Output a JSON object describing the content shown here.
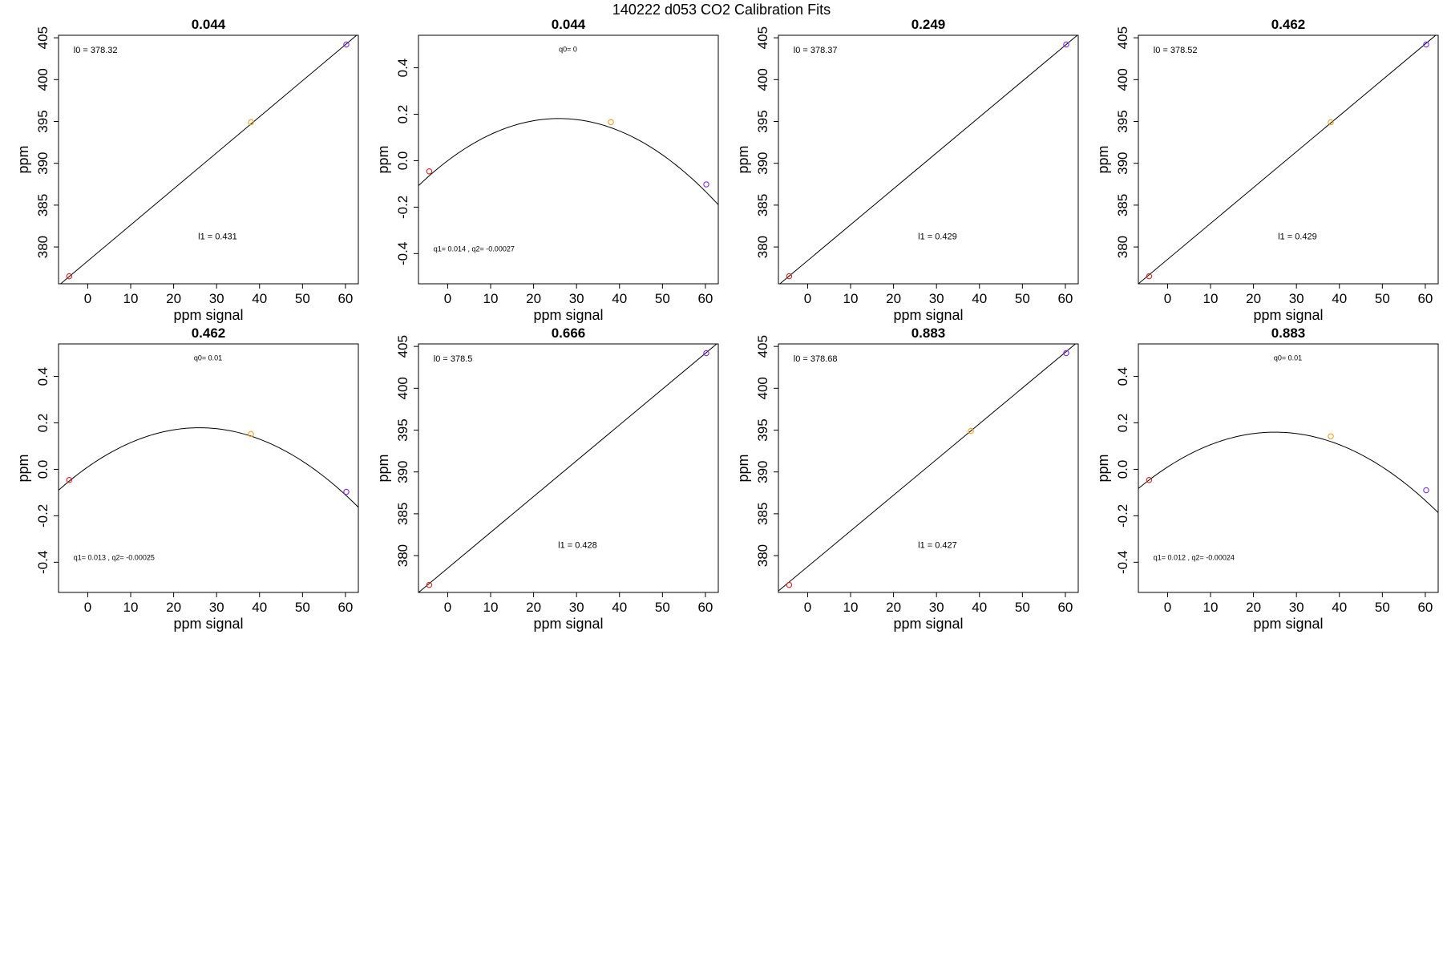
{
  "figure": {
    "suptitle": "140222   d053   CO2 Calibration Fits"
  },
  "chart_data": [
    {
      "type": "scatter",
      "fit": "linear",
      "title": "0.044",
      "xlabel": "ppm signal",
      "ylabel": "ppm",
      "xlim": [
        -6.8,
        63
      ],
      "ylim": [
        375.6,
        405.3
      ],
      "xticks": [
        0,
        10,
        20,
        30,
        40,
        50,
        60
      ],
      "yticks": [
        380,
        385,
        390,
        395,
        400,
        405
      ],
      "points": [
        {
          "x": -4.3,
          "y": 376.5,
          "color": "#dd2020"
        },
        {
          "x": 38.0,
          "y": 394.9,
          "color": "#f0a020"
        },
        {
          "x": 60.2,
          "y": 404.2,
          "color": "#7a2cf0"
        }
      ],
      "fit_params": {
        "l0": 378.32,
        "l1": 0.431
      },
      "annotations": [
        {
          "text": "l0 =  378.32",
          "ax": -3.3,
          "ay": 403.2,
          "anchor": "start",
          "size": "ann"
        },
        {
          "text": "l1 =  0.431",
          "ax": 25.7,
          "ay": 380.9,
          "anchor": "start",
          "size": "ann"
        }
      ]
    },
    {
      "type": "scatter",
      "fit": "quadratic",
      "title": "0.044",
      "xlabel": "ppm signal",
      "ylabel": "ppm",
      "xlim": [
        -6.8,
        63
      ],
      "ylim": [
        -0.53,
        0.54
      ],
      "xticks": [
        0,
        10,
        20,
        30,
        40,
        50,
        60
      ],
      "yticks": [
        -0.4,
        -0.2,
        0.0,
        0.2,
        0.4
      ],
      "yticklabels": [
        "-0.4",
        "-0.2",
        "0.0",
        "0.2",
        "0.4"
      ],
      "points": [
        {
          "x": -4.3,
          "y": -0.046,
          "color": "#dd2020"
        },
        {
          "x": 38.0,
          "y": 0.166,
          "color": "#f0a020"
        },
        {
          "x": 60.2,
          "y": -0.102,
          "color": "#7a2cf0"
        }
      ],
      "fit_params": {
        "q0": 0,
        "q1": 0.014,
        "q2": -0.00027
      },
      "annotations": [
        {
          "text": "q0= 0",
          "ax": 28.0,
          "ay": 0.47,
          "anchor": "middle",
          "size": "ann-sm"
        },
        {
          "text": "q1= 0.014 , q2= -0.00027",
          "ax": -3.3,
          "ay": -0.39,
          "anchor": "start",
          "size": "ann-sm"
        }
      ]
    },
    {
      "type": "scatter",
      "fit": "linear",
      "title": "0.249",
      "xlabel": "ppm signal",
      "ylabel": "ppm",
      "xlim": [
        -6.8,
        63
      ],
      "ylim": [
        375.6,
        405.3
      ],
      "xticks": [
        0,
        10,
        20,
        30,
        40,
        50,
        60
      ],
      "yticks": [
        380,
        385,
        390,
        395,
        400,
        405
      ],
      "points": [
        {
          "x": -4.3,
          "y": 376.5,
          "color": "#dd2020"
        },
        {
          "x": 60.2,
          "y": 404.2,
          "color": "#7a2cf0"
        }
      ],
      "fit_params": {
        "l0": 378.37,
        "l1": 0.429
      },
      "annotations": [
        {
          "text": "l0 =  378.37",
          "ax": -3.3,
          "ay": 403.2,
          "anchor": "start",
          "size": "ann"
        },
        {
          "text": "l1 =  0.429",
          "ax": 25.7,
          "ay": 380.9,
          "anchor": "start",
          "size": "ann"
        }
      ]
    },
    {
      "type": "scatter",
      "fit": "linear",
      "title": "0.462",
      "xlabel": "ppm signal",
      "ylabel": "ppm",
      "xlim": [
        -6.8,
        63
      ],
      "ylim": [
        375.6,
        405.3
      ],
      "xticks": [
        0,
        10,
        20,
        30,
        40,
        50,
        60
      ],
      "yticks": [
        380,
        385,
        390,
        395,
        400,
        405
      ],
      "points": [
        {
          "x": -4.3,
          "y": 376.5,
          "color": "#dd2020"
        },
        {
          "x": 38.0,
          "y": 394.9,
          "color": "#f0a020"
        },
        {
          "x": 60.2,
          "y": 404.2,
          "color": "#7a2cf0"
        }
      ],
      "fit_params": {
        "l0": 378.52,
        "l1": 0.429
      },
      "annotations": [
        {
          "text": "l0 =  378.52",
          "ax": -3.3,
          "ay": 403.2,
          "anchor": "start",
          "size": "ann"
        },
        {
          "text": "l1 =  0.429",
          "ax": 25.7,
          "ay": 380.9,
          "anchor": "start",
          "size": "ann"
        }
      ]
    },
    {
      "type": "scatter",
      "fit": "quadratic",
      "title": "0.462",
      "xlabel": "ppm signal",
      "ylabel": "ppm",
      "xlim": [
        -6.8,
        63
      ],
      "ylim": [
        -0.53,
        0.54
      ],
      "xticks": [
        0,
        10,
        20,
        30,
        40,
        50,
        60
      ],
      "yticks": [
        -0.4,
        -0.2,
        0.0,
        0.2,
        0.4
      ],
      "yticklabels": [
        "-0.4",
        "-0.2",
        "0.0",
        "0.2",
        "0.4"
      ],
      "points": [
        {
          "x": -4.3,
          "y": -0.046,
          "color": "#dd2020"
        },
        {
          "x": 38.0,
          "y": 0.152,
          "color": "#f0a020"
        },
        {
          "x": 60.2,
          "y": -0.097,
          "color": "#7a2cf0"
        }
      ],
      "fit_params": {
        "q0": 0.01,
        "q1": 0.013,
        "q2": -0.00025
      },
      "annotations": [
        {
          "text": "q0= 0.01",
          "ax": 28.0,
          "ay": 0.47,
          "anchor": "middle",
          "size": "ann-sm"
        },
        {
          "text": "q1= 0.013 , q2= -0.00025",
          "ax": -3.3,
          "ay": -0.39,
          "anchor": "start",
          "size": "ann-sm"
        }
      ]
    },
    {
      "type": "scatter",
      "fit": "linear",
      "title": "0.666",
      "xlabel": "ppm signal",
      "ylabel": "ppm",
      "xlim": [
        -6.8,
        63
      ],
      "ylim": [
        375.6,
        405.3
      ],
      "xticks": [
        0,
        10,
        20,
        30,
        40,
        50,
        60
      ],
      "yticks": [
        380,
        385,
        390,
        395,
        400,
        405
      ],
      "points": [
        {
          "x": -4.3,
          "y": 376.5,
          "color": "#dd2020"
        },
        {
          "x": 60.2,
          "y": 404.2,
          "color": "#7a2cf0"
        }
      ],
      "fit_params": {
        "l0": 378.5,
        "l1": 0.428
      },
      "annotations": [
        {
          "text": "l0 =  378.5",
          "ax": -3.3,
          "ay": 403.2,
          "anchor": "start",
          "size": "ann"
        },
        {
          "text": "l1 =  0.428",
          "ax": 25.7,
          "ay": 380.9,
          "anchor": "start",
          "size": "ann"
        }
      ]
    },
    {
      "type": "scatter",
      "fit": "linear",
      "title": "0.883",
      "xlabel": "ppm signal",
      "ylabel": "ppm",
      "xlim": [
        -6.8,
        63
      ],
      "ylim": [
        375.6,
        405.3
      ],
      "xticks": [
        0,
        10,
        20,
        30,
        40,
        50,
        60
      ],
      "yticks": [
        380,
        385,
        390,
        395,
        400,
        405
      ],
      "points": [
        {
          "x": -4.3,
          "y": 376.5,
          "color": "#dd2020"
        },
        {
          "x": 38.0,
          "y": 394.9,
          "color": "#f0a020"
        },
        {
          "x": 60.2,
          "y": 404.2,
          "color": "#7a2cf0"
        }
      ],
      "fit_params": {
        "l0": 378.68,
        "l1": 0.427
      },
      "annotations": [
        {
          "text": "l0 =  378.68",
          "ax": -3.3,
          "ay": 403.2,
          "anchor": "start",
          "size": "ann"
        },
        {
          "text": "l1 =  0.427",
          "ax": 25.7,
          "ay": 380.9,
          "anchor": "start",
          "size": "ann"
        }
      ]
    },
    {
      "type": "scatter",
      "fit": "quadratic",
      "title": "0.883",
      "xlabel": "ppm signal",
      "ylabel": "ppm",
      "xlim": [
        -6.8,
        63
      ],
      "ylim": [
        -0.53,
        0.54
      ],
      "xticks": [
        0,
        10,
        20,
        30,
        40,
        50,
        60
      ],
      "yticks": [
        -0.4,
        -0.2,
        0.0,
        0.2,
        0.4
      ],
      "yticklabels": [
        "-0.4",
        "-0.2",
        "0.0",
        "0.2",
        "0.4"
      ],
      "points": [
        {
          "x": -4.3,
          "y": -0.046,
          "color": "#dd2020"
        },
        {
          "x": 38.0,
          "y": 0.142,
          "color": "#f0a020"
        },
        {
          "x": 60.2,
          "y": -0.09,
          "color": "#7a2cf0"
        }
      ],
      "fit_params": {
        "q0": 0.01,
        "q1": 0.012,
        "q2": -0.00024
      },
      "annotations": [
        {
          "text": "q0= 0.01",
          "ax": 28.0,
          "ay": 0.47,
          "anchor": "middle",
          "size": "ann-sm"
        },
        {
          "text": "q1= 0.012 , q2= -0.00024",
          "ax": -3.3,
          "ay": -0.39,
          "anchor": "start",
          "size": "ann-sm"
        }
      ]
    }
  ]
}
